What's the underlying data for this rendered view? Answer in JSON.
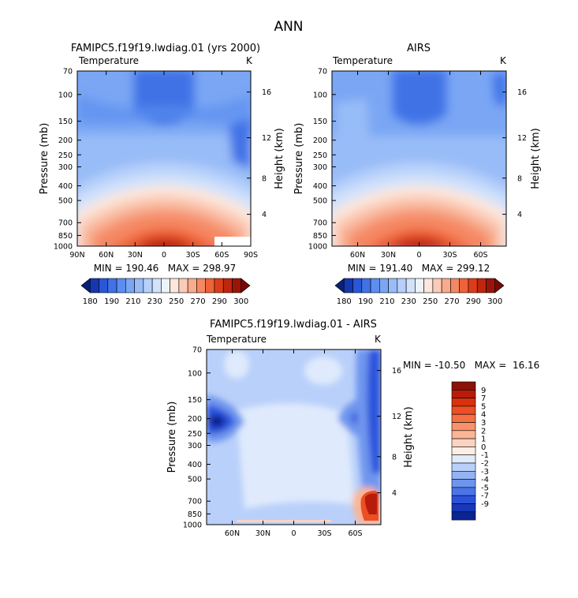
{
  "chart_data": {
    "type": "heatmap",
    "title": "ANN",
    "panels": [
      {
        "id": "model",
        "title": "FAMIPC5.f19f19.lwdiag.01 (yrs 2000)",
        "variable": "Temperature",
        "units": "K",
        "ylabel": "Pressure (mb)",
        "y2label": "Height (km)",
        "pressure_ticks": [
          "70",
          "100",
          "150",
          "200",
          "250",
          "300",
          "400",
          "500",
          "700",
          "850",
          "1000"
        ],
        "pressure_values": [
          70,
          100,
          150,
          200,
          250,
          300,
          400,
          500,
          700,
          850,
          1000
        ],
        "height_ticks": [
          "16",
          "12",
          "8",
          "4"
        ],
        "height_values": [
          16,
          12,
          8,
          4
        ],
        "lat_ticks": [
          "90N",
          "60N",
          "30N",
          "0",
          "30S",
          "60S",
          "90S"
        ],
        "lat_values": [
          90,
          60,
          30,
          0,
          -30,
          -60,
          -90
        ],
        "xlim": [
          90,
          -90
        ],
        "ylim": [
          1000,
          70
        ],
        "stats": "MIN = 190.46   MAX = 298.97",
        "min": 190.46,
        "max": 298.97
      },
      {
        "id": "obs",
        "title": "AIRS",
        "variable": "Temperature",
        "units": "K",
        "ylabel": "Pressure (mb)",
        "y2label": "Height (km)",
        "pressure_ticks": [
          "70",
          "100",
          "150",
          "200",
          "250",
          "300",
          "400",
          "500",
          "700",
          "850",
          "1000"
        ],
        "pressure_values": [
          70,
          100,
          150,
          200,
          250,
          300,
          400,
          500,
          700,
          850,
          1000
        ],
        "height_ticks": [
          "16",
          "12",
          "8",
          "4"
        ],
        "height_values": [
          16,
          12,
          8,
          4
        ],
        "lat_ticks": [
          "60N",
          "30N",
          "0",
          "30S",
          "60S"
        ],
        "lat_values": [
          60,
          30,
          0,
          -30,
          -60
        ],
        "xlim": [
          85,
          -85
        ],
        "ylim": [
          1000,
          70
        ],
        "stats": "MIN = 191.40   MAX = 299.12",
        "min": 191.4,
        "max": 299.12
      },
      {
        "id": "diff",
        "title": "FAMIPC5.f19f19.lwdiag.01 - AIRS",
        "variable": "Temperature",
        "units": "K",
        "ylabel": "Pressure (mb)",
        "y2label": "Height (km)",
        "pressure_ticks": [
          "70",
          "100",
          "150",
          "200",
          "250",
          "300",
          "400",
          "500",
          "700",
          "850",
          "1000"
        ],
        "pressure_values": [
          70,
          100,
          150,
          200,
          250,
          300,
          400,
          500,
          700,
          850,
          1000
        ],
        "height_ticks": [
          "16",
          "12",
          "8",
          "4"
        ],
        "height_values": [
          16,
          12,
          8,
          4
        ],
        "lat_ticks": [
          "60N",
          "30N",
          "0",
          "30S",
          "60S"
        ],
        "lat_values": [
          60,
          30,
          0,
          -30,
          -60
        ],
        "xlim": [
          85,
          -85
        ],
        "ylim": [
          1000,
          70
        ],
        "stats": "MIN = -10.50   MAX =  16.16",
        "min": -10.5,
        "max": 16.16
      }
    ],
    "abs_colorbar": {
      "labels": [
        "180",
        "190",
        "210",
        "230",
        "250",
        "270",
        "290",
        "300"
      ],
      "colors": [
        "#08207a",
        "#1538b0",
        "#2a56d8",
        "#3f72e6",
        "#5c8ef0",
        "#7aa6f4",
        "#98bcf7",
        "#b6d0fa",
        "#d2e2fb",
        "#ecf3fd",
        "#fde7dc",
        "#fbcbb6",
        "#f8ab8d",
        "#f58863",
        "#ee6338",
        "#dc3d18",
        "#c0250e",
        "#9a1508",
        "#750a04"
      ]
    },
    "diff_colorbar": {
      "labels": [
        "9",
        "7",
        "5",
        "4",
        "3",
        "2",
        "1",
        "0",
        "-1",
        "-2",
        "-3",
        "-4",
        "-5",
        "-7",
        "-9"
      ],
      "colors": [
        "#8a1207",
        "#b71c0b",
        "#d9310f",
        "#ec4f23",
        "#f57043",
        "#f8926b",
        "#fab496",
        "#fcd3bf",
        "#fdeee5",
        "#dfeafc",
        "#b9d0fa",
        "#93b4f4",
        "#6e95ee",
        "#4a74e8",
        "#2b52db",
        "#1838b9",
        "#0a2493"
      ]
    }
  }
}
